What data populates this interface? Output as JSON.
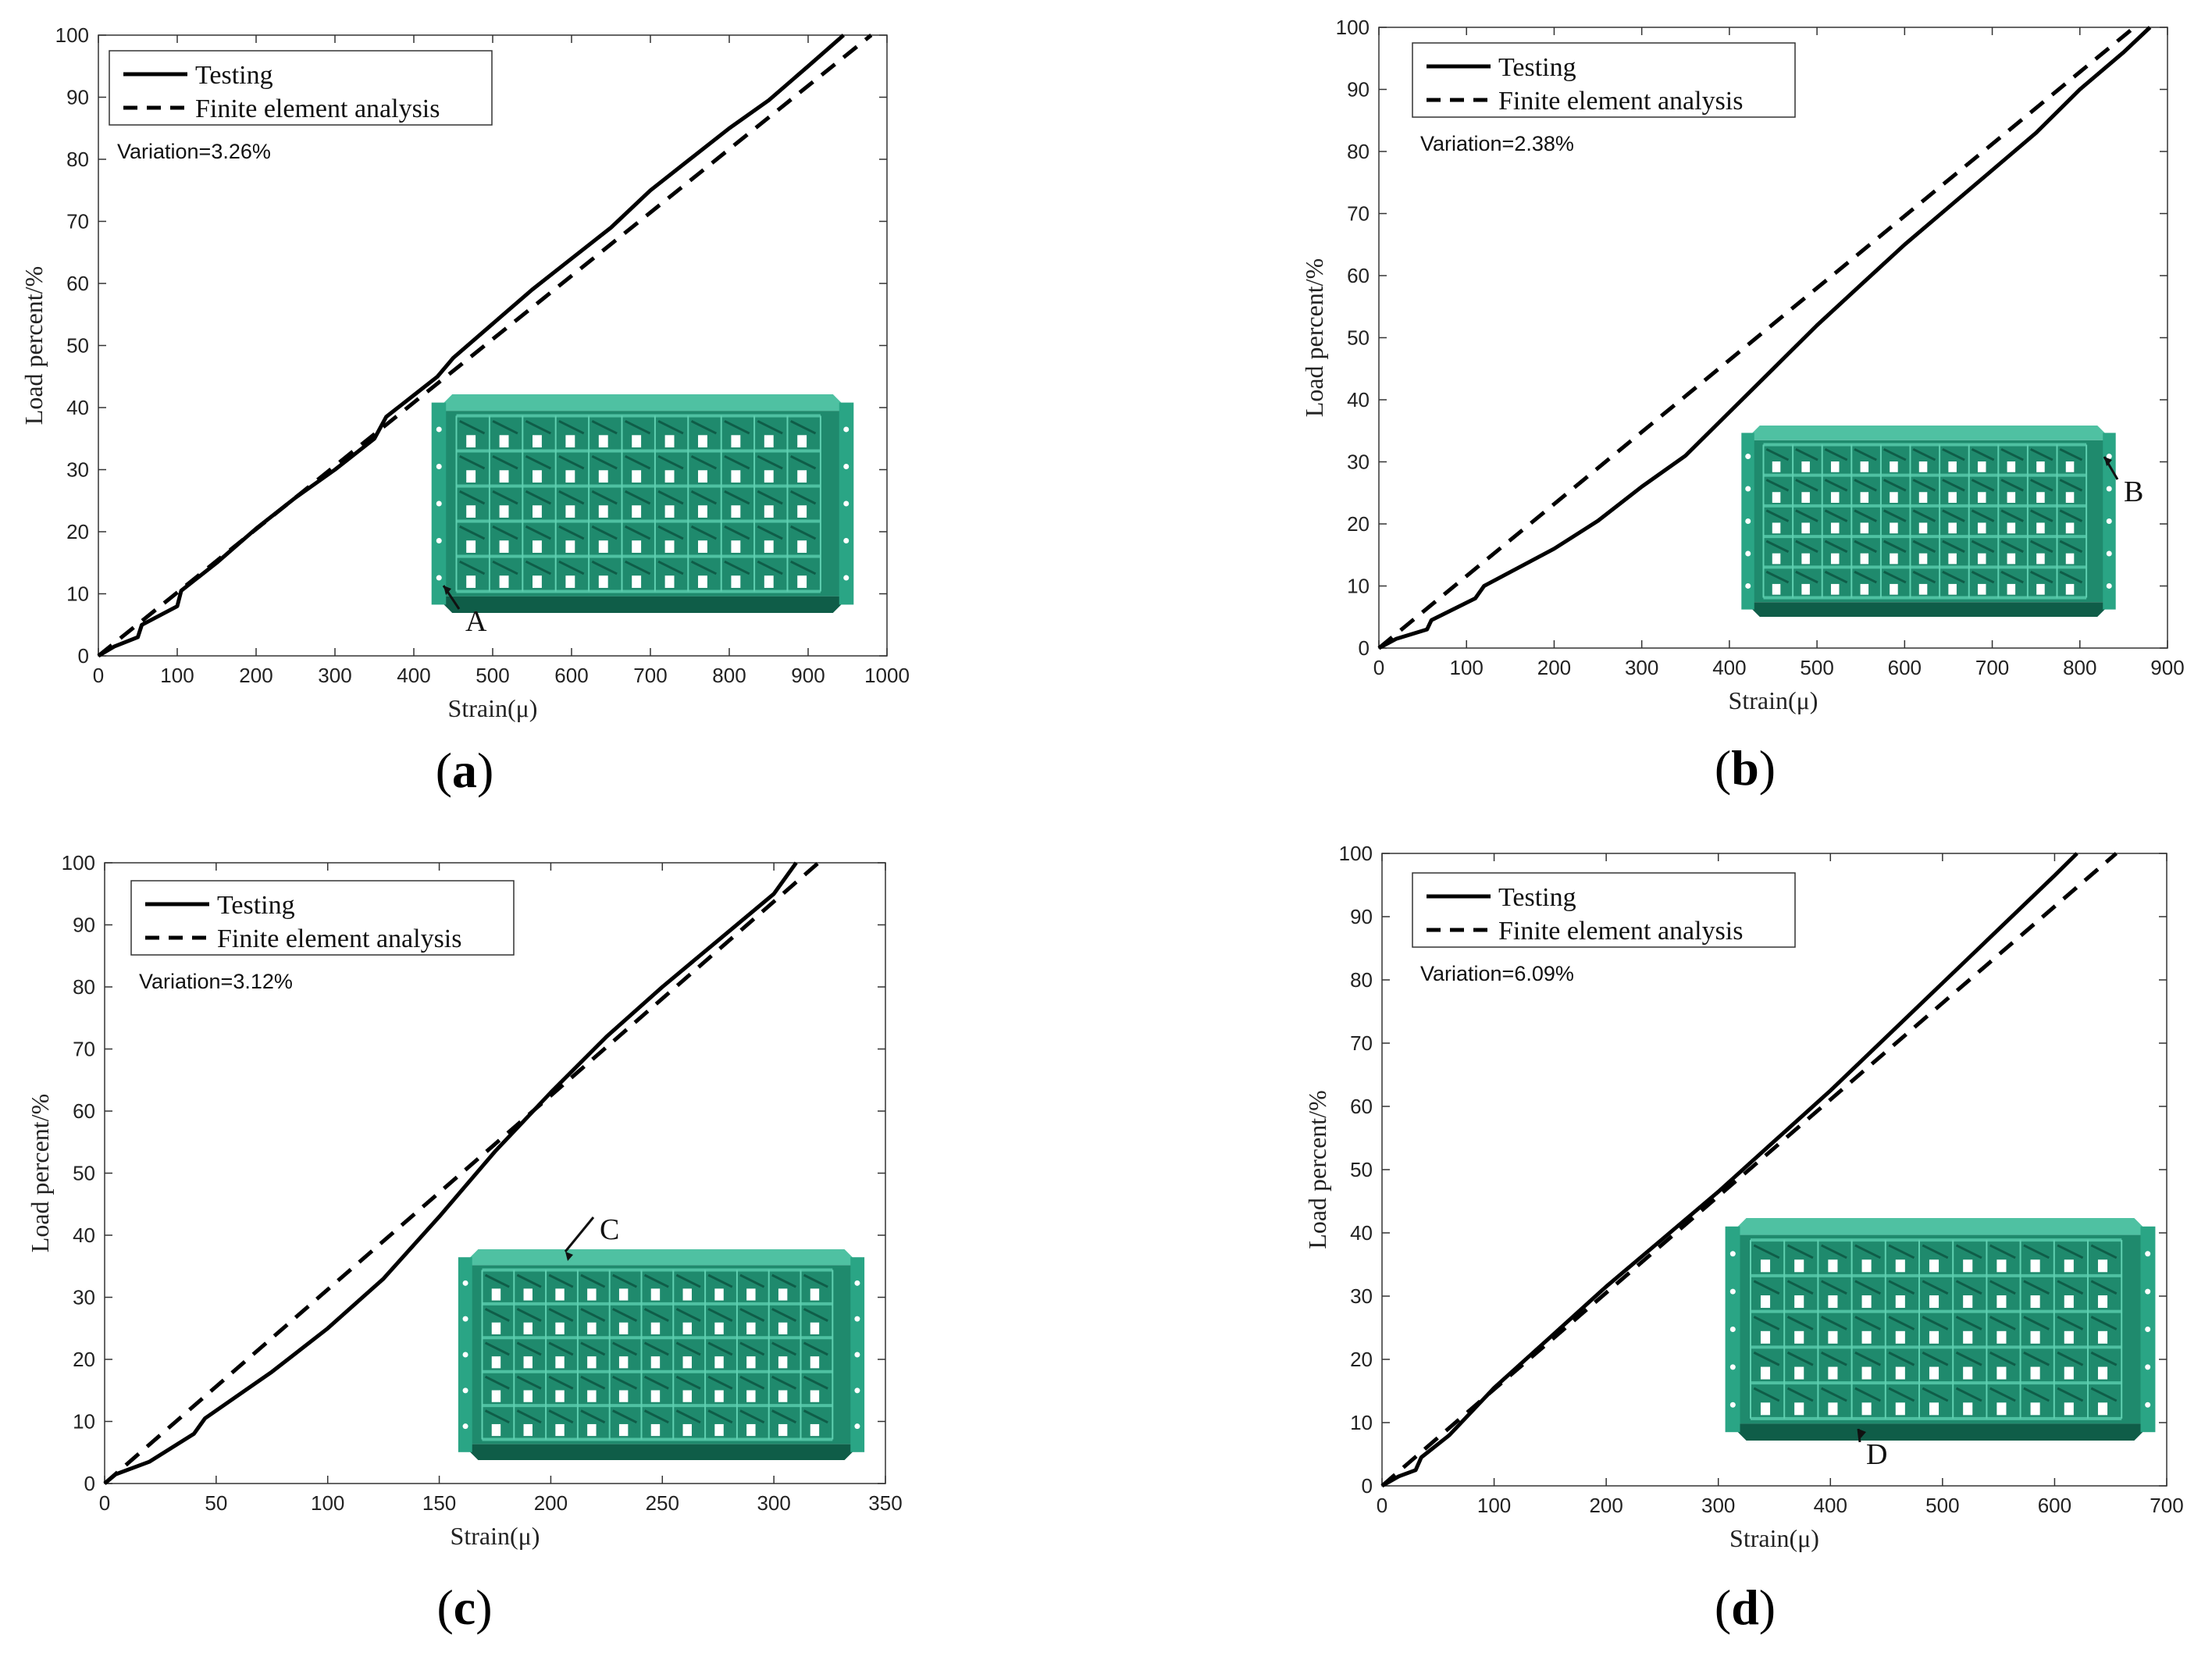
{
  "figure": {
    "panels": [
      "a",
      "b",
      "c",
      "d"
    ]
  },
  "colors": {
    "line": "#000000",
    "axis": "#333333",
    "model_main": "#1f8a6d",
    "model_dark": "#0f5d48",
    "model_light": "#4fc1a2"
  },
  "chart_data": [
    {
      "type": "line",
      "panel_label": "a",
      "xlabel": "Strain(μ)",
      "ylabel": "Load percent/%",
      "xlim": [
        0,
        1000
      ],
      "ylim": [
        0,
        100
      ],
      "xticks": [
        0,
        100,
        200,
        300,
        400,
        500,
        600,
        700,
        800,
        900,
        1000
      ],
      "yticks": [
        0,
        10,
        20,
        30,
        40,
        50,
        60,
        70,
        80,
        90,
        100
      ],
      "legend": [
        "Testing",
        "Finite element analysis"
      ],
      "annotation": "Variation=3.26%",
      "callout": "A",
      "series": [
        {
          "name": "Testing",
          "style": "solid",
          "x": [
            0,
            20,
            50,
            55,
            100,
            105,
            150,
            200,
            250,
            300,
            350,
            365,
            400,
            430,
            450,
            500,
            550,
            600,
            650,
            700,
            750,
            800,
            850,
            900,
            945
          ],
          "y": [
            0,
            1.5,
            3,
            5,
            8,
            10.5,
            15,
            20.5,
            25.5,
            30,
            35,
            38.5,
            42,
            45,
            48,
            53.5,
            59,
            64,
            69,
            75,
            80,
            85,
            89.5,
            95,
            100
          ]
        },
        {
          "name": "Finite element analysis",
          "style": "dashed",
          "x": [
            0,
            980
          ],
          "y": [
            0,
            100
          ]
        }
      ]
    },
    {
      "type": "line",
      "panel_label": "b",
      "xlabel": "Strain(μ)",
      "ylabel": "Load percent/%",
      "xlim": [
        0,
        900
      ],
      "ylim": [
        0,
        100
      ],
      "xticks": [
        0,
        100,
        200,
        300,
        400,
        500,
        600,
        700,
        800,
        900
      ],
      "yticks": [
        0,
        10,
        20,
        30,
        40,
        50,
        60,
        70,
        80,
        90,
        100
      ],
      "legend": [
        "Testing",
        "Finite element analysis"
      ],
      "annotation": "Variation=2.38%",
      "callout": "B",
      "series": [
        {
          "name": "Testing",
          "style": "solid",
          "x": [
            0,
            20,
            55,
            60,
            110,
            120,
            200,
            250,
            300,
            350,
            400,
            450,
            500,
            550,
            600,
            650,
            700,
            750,
            800,
            850,
            880
          ],
          "y": [
            0,
            1.5,
            3,
            4.5,
            8,
            10,
            16,
            20.5,
            26,
            31,
            38,
            45,
            52,
            58.5,
            65,
            71,
            77,
            83,
            90,
            96,
            100
          ]
        },
        {
          "name": "Finite element analysis",
          "style": "dashed",
          "x": [
            0,
            862
          ],
          "y": [
            0,
            100
          ]
        }
      ]
    },
    {
      "type": "line",
      "panel_label": "c",
      "xlabel": "Strain(μ)",
      "ylabel": "Load percent/%",
      "xlim": [
        0,
        350
      ],
      "ylim": [
        0,
        100
      ],
      "xticks": [
        0,
        50,
        100,
        150,
        200,
        250,
        300,
        350
      ],
      "yticks": [
        0,
        10,
        20,
        30,
        40,
        50,
        60,
        70,
        80,
        90,
        100
      ],
      "legend": [
        "Testing",
        "Finite element analysis"
      ],
      "annotation": "Variation=3.12%",
      "callout": "C",
      "series": [
        {
          "name": "Testing",
          "style": "solid",
          "x": [
            0,
            5,
            20,
            40,
            45,
            75,
            100,
            125,
            150,
            175,
            200,
            225,
            250,
            275,
            300,
            310
          ],
          "y": [
            0,
            1.5,
            3.5,
            8,
            10.5,
            18,
            25,
            33,
            43,
            53.5,
            63,
            72,
            80,
            87.5,
            95,
            100
          ]
        },
        {
          "name": "Finite element analysis",
          "style": "dashed",
          "x": [
            0,
            320
          ],
          "y": [
            0,
            100
          ]
        }
      ]
    },
    {
      "type": "line",
      "panel_label": "d",
      "xlabel": "Strain(μ)",
      "ylabel": "Load percent/%",
      "xlim": [
        0,
        700
      ],
      "ylim": [
        0,
        100
      ],
      "xticks": [
        0,
        100,
        200,
        300,
        400,
        500,
        600,
        700
      ],
      "yticks": [
        0,
        10,
        20,
        30,
        40,
        50,
        60,
        70,
        80,
        90,
        100
      ],
      "legend": [
        "Testing",
        "Finite element analysis"
      ],
      "annotation": "Variation=6.09%",
      "callout": "D",
      "series": [
        {
          "name": "Testing",
          "style": "solid",
          "x": [
            0,
            15,
            30,
            35,
            60,
            100,
            150,
            200,
            250,
            300,
            350,
            400,
            450,
            500,
            550,
            600,
            620
          ],
          "y": [
            0,
            1.5,
            2.5,
            4.5,
            8,
            15.5,
            23.5,
            31.5,
            39,
            46.5,
            54.5,
            62.5,
            71,
            79.5,
            88,
            96.5,
            100
          ]
        },
        {
          "name": "Finite element analysis",
          "style": "dashed",
          "x": [
            0,
            655
          ],
          "y": [
            0,
            100
          ]
        }
      ]
    }
  ]
}
